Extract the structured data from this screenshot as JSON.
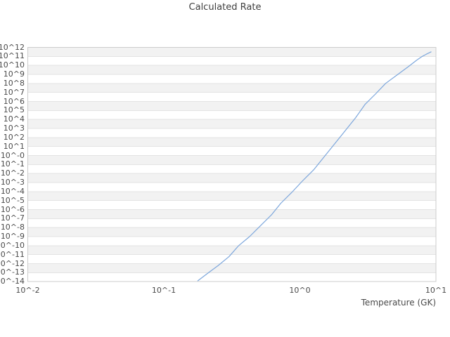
{
  "header": {
    "title": "Calculated Rate"
  },
  "style": {
    "background": "#ffffff",
    "band_fill": "#f2f2f2",
    "grid_color": "#e3e3e3",
    "axis_border_color": "#cccccc",
    "tick_text_color": "#4a4a4a",
    "title_text_color": "#3f3f3f",
    "curve_color": "#7da7dc"
  },
  "chart_data": {
    "type": "line",
    "title": "Calculated Rate",
    "xlabel": "Temperature (GK)",
    "ylabel": "",
    "x_scale": "log10",
    "y_scale": "log10",
    "xlim_log10": [
      -2,
      1
    ],
    "ylim_log10": [
      -14,
      12
    ],
    "x_tick_log10": [
      -2,
      -1,
      0,
      1
    ],
    "x_tick_labels": [
      "10^-2",
      "10^-1",
      "10^0",
      "10^1"
    ],
    "y_tick_log10": [
      12,
      11,
      10,
      9,
      8,
      7,
      6,
      5,
      4,
      3,
      2,
      1,
      0,
      -1,
      -2,
      -3,
      -4,
      -5,
      -6,
      -7,
      -8,
      -9,
      -10,
      -11,
      -12,
      -13,
      -14
    ],
    "y_tick_labels": [
      "10^12",
      "10^11",
      "10^10",
      "10^9",
      "10^8",
      "10^7",
      "10^6",
      "10^5",
      "10^4",
      "10^3",
      "10^2",
      "10^1",
      "10^-0",
      "10^-1",
      "10^-2",
      "10^-3",
      "10^-4",
      "10^-5",
      "10^-6",
      "10^-7",
      "10^-8",
      "10^-9",
      "10^-10",
      "10^-11",
      "10^-12",
      "10^-13",
      "10^-14"
    ],
    "grid": "horizontal gridlines at every decade with alternating gray/white bands, no vertical gridlines",
    "legend_position": "none",
    "series": [
      {
        "name": "Calculated Rate",
        "color": "#7da7dc",
        "points_log10": [
          [
            -0.75,
            -13.9
          ],
          [
            -0.68,
            -13.1
          ],
          [
            -0.6,
            -12.2
          ],
          [
            -0.52,
            -11.2
          ],
          [
            -0.45,
            -10.0
          ],
          [
            -0.37,
            -9.0
          ],
          [
            -0.29,
            -7.8
          ],
          [
            -0.21,
            -6.6
          ],
          [
            -0.14,
            -5.3
          ],
          [
            -0.06,
            -4.1
          ],
          [
            0.02,
            -2.8
          ],
          [
            0.1,
            -1.6
          ],
          [
            0.17,
            -0.3
          ],
          [
            0.25,
            1.2
          ],
          [
            0.33,
            2.7
          ],
          [
            0.41,
            4.2
          ],
          [
            0.48,
            5.7
          ],
          [
            0.56,
            6.9
          ],
          [
            0.63,
            8.0
          ],
          [
            0.72,
            9.0
          ],
          [
            0.8,
            9.9
          ],
          [
            0.86,
            10.6
          ],
          [
            0.9,
            11.0
          ],
          [
            0.93,
            11.25
          ],
          [
            0.964,
            11.5
          ]
        ]
      }
    ]
  }
}
